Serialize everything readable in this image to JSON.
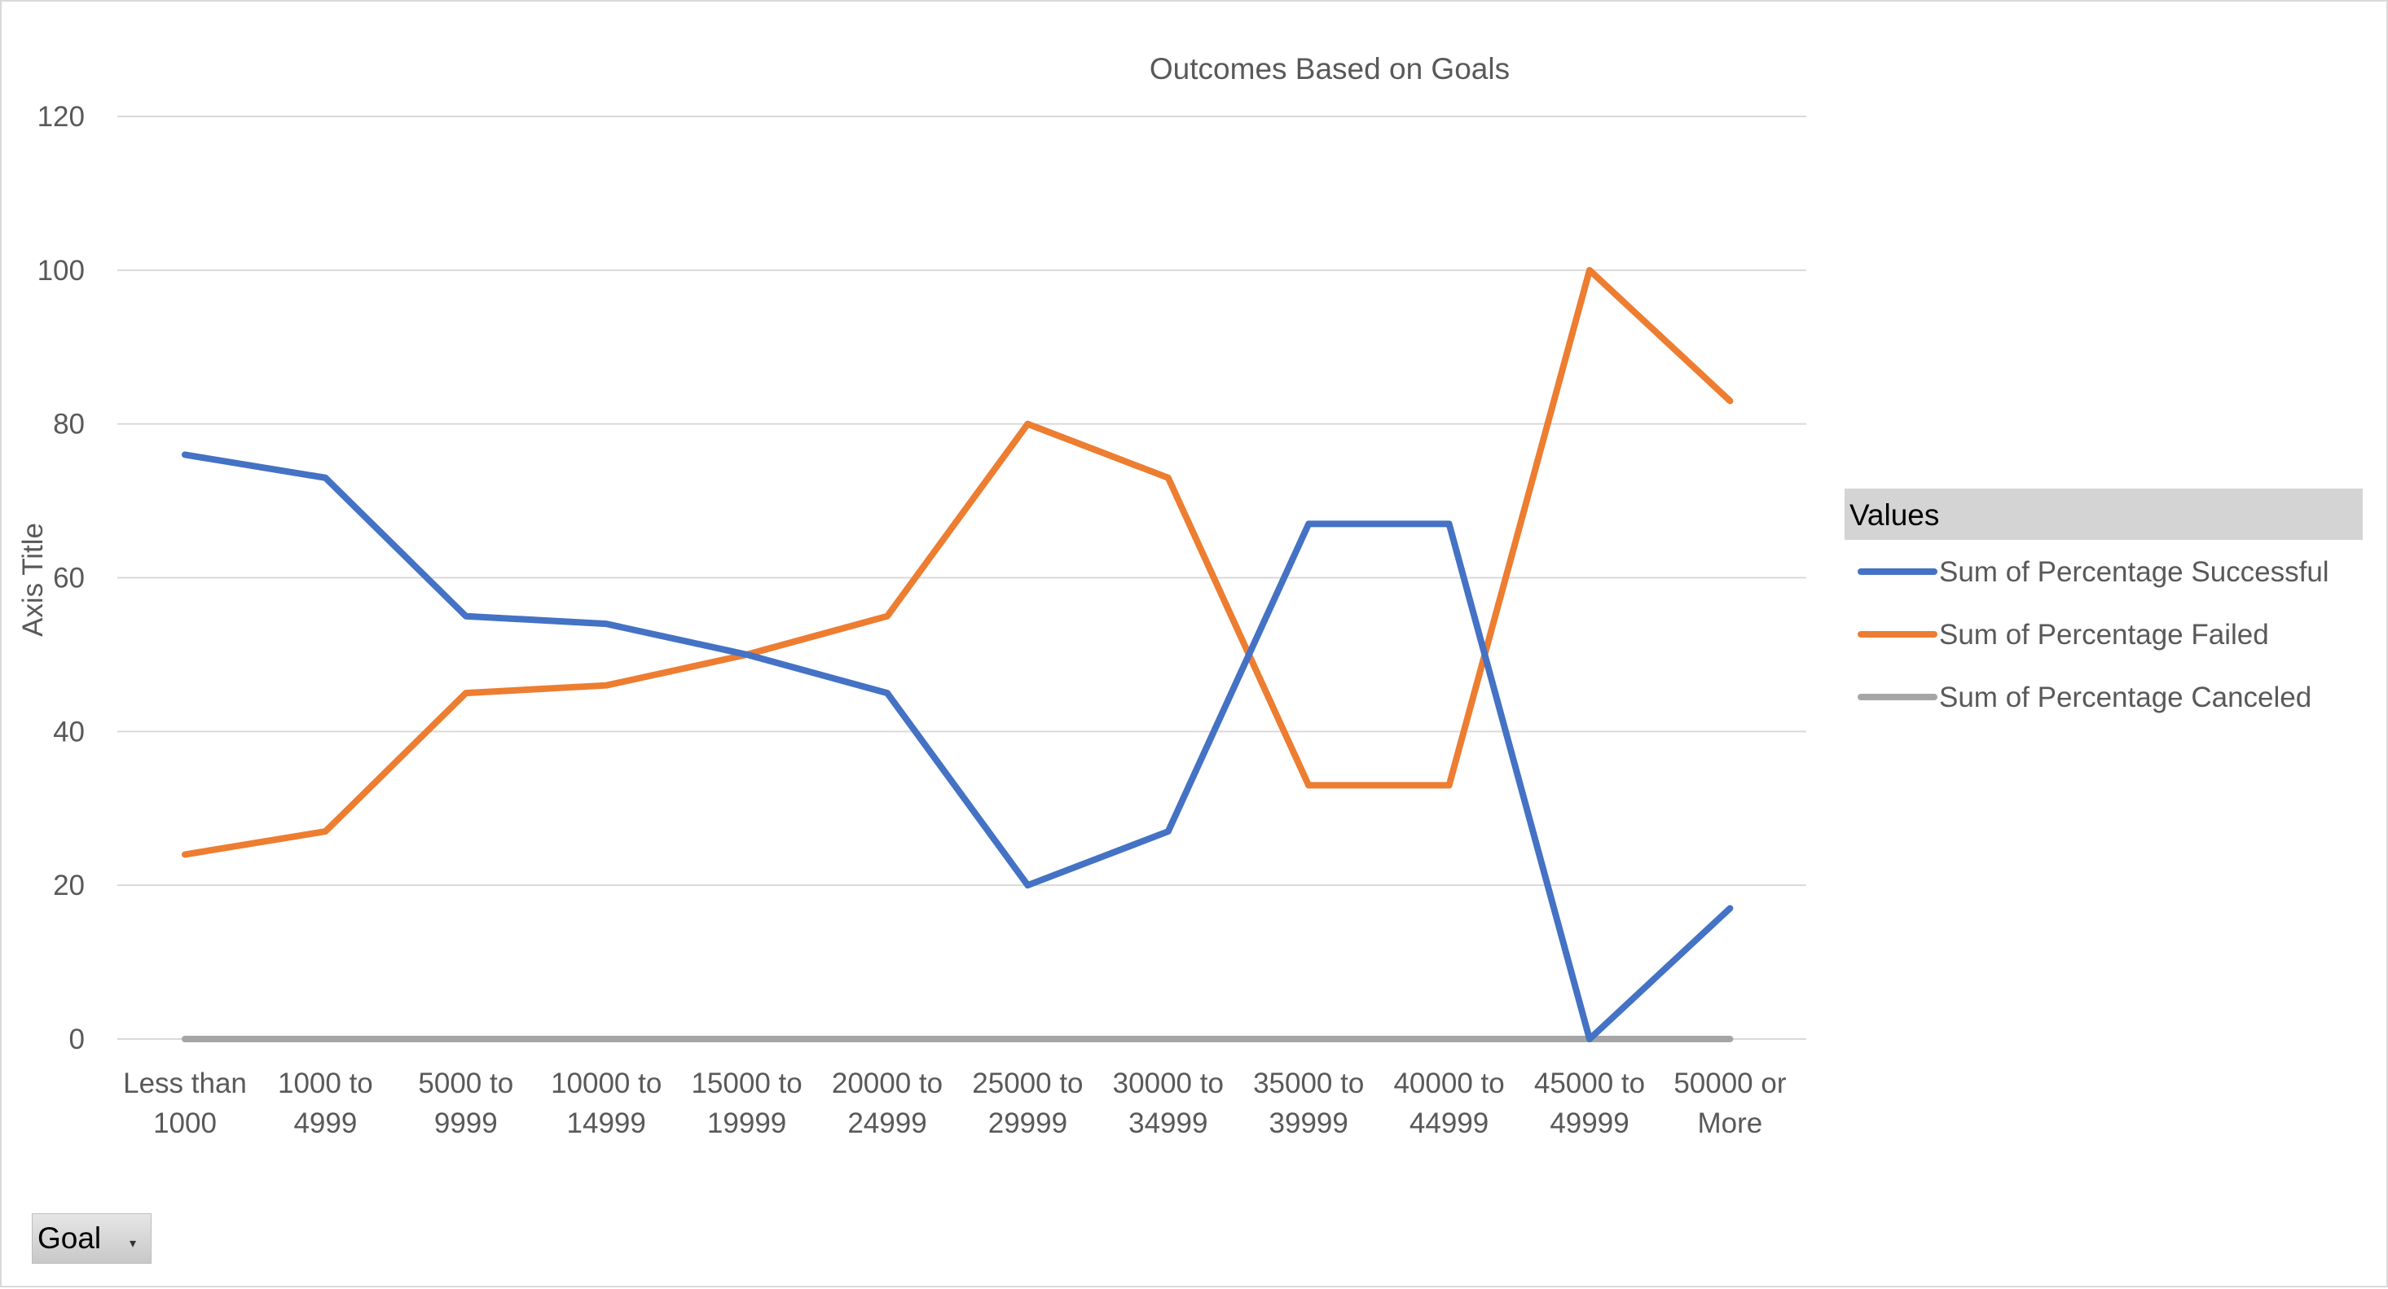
{
  "chart_data": {
    "type": "line",
    "title": "Outcomes Based on Goals",
    "xlabel": "",
    "ylabel": "Axis Title",
    "ylim": [
      0,
      120
    ],
    "yticks": [
      0,
      20,
      40,
      60,
      80,
      100,
      120
    ],
    "grid": true,
    "legend_placement": "right",
    "legend_title": "Values",
    "categories": [
      [
        "Less than",
        "1000"
      ],
      [
        "1000 to",
        "4999"
      ],
      [
        "5000 to",
        "9999"
      ],
      [
        "10000 to",
        "14999"
      ],
      [
        "15000 to",
        "19999"
      ],
      [
        "20000 to",
        "24999"
      ],
      [
        "25000 to",
        "29999"
      ],
      [
        "30000 to",
        "34999"
      ],
      [
        "35000 to",
        "39999"
      ],
      [
        "40000 to",
        "44999"
      ],
      [
        "45000 to",
        "49999"
      ],
      [
        "50000 or",
        "More"
      ]
    ],
    "series": [
      {
        "name": "Sum of Percentage Successful",
        "color": "#4472c4",
        "values": [
          76,
          73,
          55,
          54,
          50,
          45,
          20,
          27,
          67,
          67,
          0,
          17
        ]
      },
      {
        "name": "Sum of Percentage Failed",
        "color": "#ed7d31",
        "values": [
          24,
          27,
          45,
          46,
          50,
          55,
          80,
          73,
          33,
          33,
          100,
          83
        ]
      },
      {
        "name": "Sum of Percentage Canceled",
        "color": "#a5a5a5",
        "values": [
          0,
          0,
          0,
          0,
          0,
          0,
          0,
          0,
          0,
          0,
          0,
          0
        ]
      }
    ]
  },
  "filter": {
    "label": "Goal",
    "icon": "dropdown-arrow-icon"
  }
}
